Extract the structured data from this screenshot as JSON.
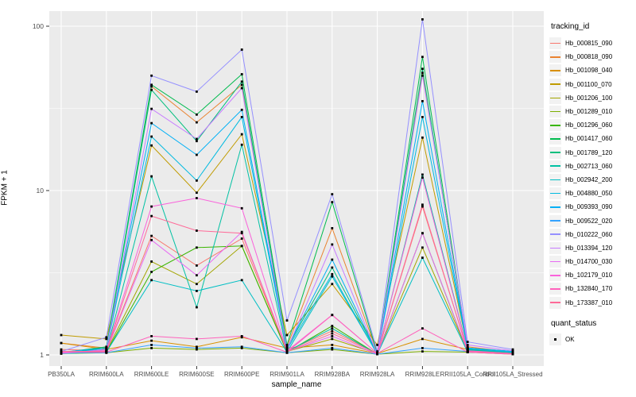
{
  "chart_data": {
    "type": "line",
    "title": "",
    "xlabel": "sample_name",
    "ylabel": "FPKM + 1",
    "y_scale": "log10",
    "ylim": [
      1,
      120
    ],
    "y_ticks": [
      1,
      10,
      100
    ],
    "y_minor_ticks": [
      3.162,
      31.62
    ],
    "grid": true,
    "legend_position": "right",
    "legend_title": "tracking_id",
    "legend2_title": "quant_status",
    "legend2_items": [
      "OK"
    ],
    "panel_bg": "#EBEBEB",
    "grid_color": "#FFFFFF",
    "point_color": "#000000",
    "tick_label_color": "#4D4D4D",
    "categories": [
      "PB350LA",
      "RRIM600LA",
      "RRIM600LE",
      "RRIM600SE",
      "RRIM600PE",
      "RRIM901LA",
      "RRIM928BA",
      "RRIM928LA",
      "RRIM928LE",
      "RRII105LA_Control",
      "RRII105LA_Stressed"
    ],
    "series": [
      {
        "name": "Hb_000815_090",
        "color": "#F8766D",
        "values": [
          1.08,
          1.06,
          5.3,
          3.5,
          5.1,
          1.06,
          1.4,
          1.02,
          8.0,
          1.06,
          1.03
        ]
      },
      {
        "name": "Hb_000818_090",
        "color": "#EA8331",
        "values": [
          1.18,
          1.1,
          43,
          26,
          44,
          1.12,
          5.9,
          1.03,
          52,
          1.12,
          1.04
        ]
      },
      {
        "name": "Hb_001098_040",
        "color": "#D89000",
        "values": [
          1.18,
          1.08,
          1.22,
          1.12,
          1.28,
          1.1,
          1.15,
          1.02,
          1.25,
          1.08,
          1.02
        ]
      },
      {
        "name": "Hb_001100_070",
        "color": "#C09B00",
        "values": [
          1.32,
          1.25,
          18.8,
          9.7,
          22,
          1.32,
          2.7,
          1.15,
          21,
          1.1,
          1.03
        ]
      },
      {
        "name": "Hb_001206_100",
        "color": "#A3A500",
        "values": [
          1.03,
          1.05,
          3.7,
          2.7,
          4.6,
          1.05,
          1.25,
          1.02,
          4.5,
          1.05,
          1.02
        ]
      },
      {
        "name": "Hb_001289_010",
        "color": "#7CAE00",
        "values": [
          1.02,
          1.03,
          1.1,
          1.08,
          1.1,
          1.03,
          1.08,
          1.01,
          1.05,
          1.04,
          1.01
        ]
      },
      {
        "name": "Hb_001296_060",
        "color": "#39B600",
        "values": [
          1.02,
          1.04,
          3.2,
          4.5,
          4.6,
          1.04,
          1.5,
          1.01,
          5.5,
          1.04,
          1.02
        ]
      },
      {
        "name": "Hb_001417_060",
        "color": "#00BB4E",
        "values": [
          1.03,
          1.12,
          44,
          29,
          51,
          1.15,
          8.5,
          1.02,
          65,
          1.1,
          1.05
        ]
      },
      {
        "name": "Hb_001789_120",
        "color": "#00BF7D",
        "values": [
          1.02,
          1.1,
          41,
          20,
          46,
          1.1,
          3.4,
          1.02,
          55,
          1.08,
          1.04
        ]
      },
      {
        "name": "Hb_002713_060",
        "color": "#00C1A3",
        "values": [
          1.02,
          1.05,
          12.2,
          1.95,
          19,
          1.05,
          1.45,
          1.01,
          12.5,
          1.07,
          1.03
        ]
      },
      {
        "name": "Hb_002942_200",
        "color": "#00BFC4",
        "values": [
          1.02,
          1.04,
          2.85,
          2.45,
          2.85,
          1.04,
          3.0,
          1.01,
          3.9,
          1.04,
          1.02
        ]
      },
      {
        "name": "Hb_004880_050",
        "color": "#00BAE0",
        "values": [
          1.03,
          1.08,
          21.3,
          11.5,
          28,
          1.08,
          3.1,
          1.01,
          28,
          1.09,
          1.04
        ]
      },
      {
        "name": "Hb_009393_090",
        "color": "#00B0F6",
        "values": [
          1.04,
          1.1,
          25.7,
          16.5,
          31,
          1.1,
          3.8,
          1.02,
          35,
          1.1,
          1.05
        ]
      },
      {
        "name": "Hb_009522_020",
        "color": "#35A2FF",
        "values": [
          1.03,
          1.03,
          1.15,
          1.1,
          1.12,
          1.03,
          1.1,
          1.01,
          1.1,
          1.05,
          1.02
        ]
      },
      {
        "name": "Hb_010222_060",
        "color": "#9590FF",
        "values": [
          1.05,
          1.28,
          50,
          40,
          72,
          1.62,
          9.5,
          1.05,
          110,
          1.2,
          1.08
        ]
      },
      {
        "name": "Hb_013394_120",
        "color": "#C77CFF",
        "values": [
          1.02,
          1.08,
          31.4,
          20.6,
          42,
          1.08,
          4.7,
          1.01,
          50,
          1.15,
          1.06
        ]
      },
      {
        "name": "Hb_014700_030",
        "color": "#E76BF3",
        "values": [
          1.03,
          1.05,
          5.0,
          3.05,
          5.6,
          1.05,
          1.3,
          1.01,
          5.5,
          1.05,
          1.02
        ]
      },
      {
        "name": "Hb_102179_010",
        "color": "#FA62DB",
        "values": [
          1.04,
          1.06,
          8.0,
          9.0,
          7.8,
          1.06,
          1.75,
          1.02,
          12,
          1.06,
          1.02
        ]
      },
      {
        "name": "Hb_132840_170",
        "color": "#FF62BC",
        "values": [
          1.04,
          1.04,
          1.3,
          1.25,
          1.3,
          1.04,
          1.75,
          1.02,
          1.45,
          1.04,
          1.01
        ]
      },
      {
        "name": "Hb_173387_010",
        "color": "#FF6A98",
        "values": [
          1.05,
          1.05,
          7.0,
          5.7,
          5.5,
          1.05,
          1.35,
          1.02,
          8.2,
          1.05,
          1.02
        ]
      }
    ]
  }
}
